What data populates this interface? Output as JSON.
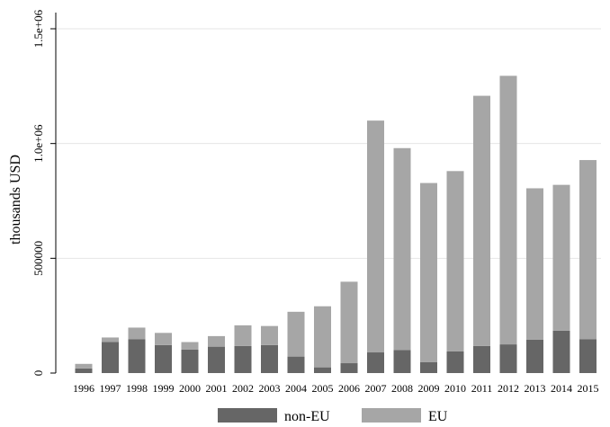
{
  "chart_data": {
    "type": "bar",
    "stacked": true,
    "title": "",
    "xlabel": "",
    "ylabel": "thousands USD",
    "ylim": [
      0,
      1500000
    ],
    "yticks": [
      0,
      500000,
      1000000,
      1500000
    ],
    "ytick_labels": [
      "0",
      "500000",
      "1.0e+06",
      "1.5e+06"
    ],
    "categories": [
      "1996",
      "1997",
      "1998",
      "1999",
      "2000",
      "2001",
      "2002",
      "2003",
      "2004",
      "2005",
      "2006",
      "2007",
      "2008",
      "2009",
      "2010",
      "2011",
      "2012",
      "2013",
      "2014",
      "2015"
    ],
    "series": [
      {
        "name": "non-EU",
        "color": "#666666",
        "values": [
          20000,
          135000,
          148000,
          122000,
          102000,
          115000,
          118000,
          122000,
          72000,
          25000,
          43000,
          90000,
          100000,
          48000,
          95000,
          118000,
          125000,
          145000,
          185000,
          148000
        ]
      },
      {
        "name": "EU",
        "color": "#a6a6a6",
        "values": [
          20000,
          20000,
          50000,
          53000,
          33000,
          46000,
          90000,
          83000,
          195000,
          266000,
          355000,
          1010000,
          880000,
          780000,
          785000,
          1090000,
          1170000,
          660000,
          635000,
          780000
        ]
      }
    ],
    "grid": true,
    "legend_position": "bottom"
  }
}
